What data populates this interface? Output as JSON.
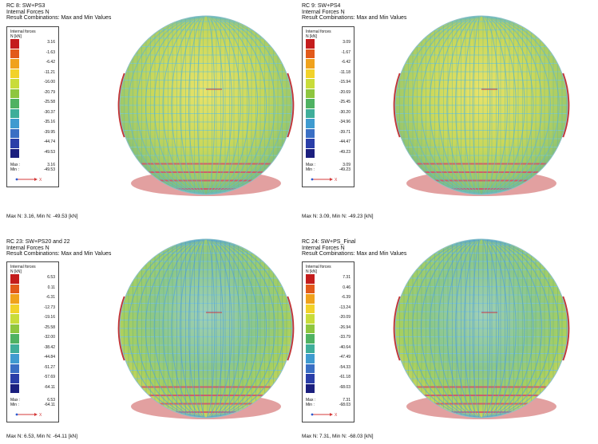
{
  "colors": {
    "scale": [
      "#c41c1c",
      "#e25a1a",
      "#f0a21c",
      "#f2d22a",
      "#c9dc3a",
      "#8ec63f",
      "#4fb262",
      "#3fae9a",
      "#3f9bd0",
      "#3a6fc4",
      "#2a3ea8",
      "#1b1f7e"
    ],
    "sphere_accent_red": "#c43636"
  },
  "panels": [
    {
      "title": "RC 8: SW+PS3",
      "subtitle": "Internal Forces N",
      "combo": "Result Combinations: Max and Min Values",
      "legend_title": "Internal forces",
      "legend_unit": "N [kN]",
      "ticks": [
        "3.16",
        "-1.63",
        "-6.42",
        "-11.21",
        "-16.00",
        "-20.79",
        "-25.58",
        "-30.37",
        "-35.16",
        "-39.95",
        "-44.74",
        "-49.53"
      ],
      "max_label": "Max :",
      "max_value": "3.16",
      "min_label": "Min :",
      "min_value": "-49.53",
      "footer": "Max N: 3.16, Min N: -49.53 [kN]",
      "tone": "yellow"
    },
    {
      "title": "RC 9: SW+PS4",
      "subtitle": "Internal Forces N",
      "combo": "Result Combinations: Max and Min Values",
      "legend_title": "Internal forces",
      "legend_unit": "N [kN]",
      "ticks": [
        "3.09",
        "-1.67",
        "-6.42",
        "-11.18",
        "-15.94",
        "-20.69",
        "-25.45",
        "-30.20",
        "-34.96",
        "-39.71",
        "-44.47",
        "-49.23"
      ],
      "max_label": "Max :",
      "max_value": "3.09",
      "min_label": "Min :",
      "min_value": "-49.23",
      "footer": "Max N: 3.09, Min N: -49.23 [kN]",
      "tone": "yellow"
    },
    {
      "title": "RC 23: SW+PS20 and 22",
      "subtitle": "Internal Forces N",
      "combo": "Result Combinations: Max and Min Values",
      "legend_title": "Internal forces",
      "legend_unit": "N [kN]",
      "ticks": [
        "6.53",
        "0.11",
        "-6.31",
        "-12.73",
        "-19.16",
        "-25.58",
        "-32.00",
        "-38.42",
        "-44.84",
        "-51.27",
        "-57.69",
        "-64.11"
      ],
      "max_label": "Max :",
      "max_value": "6.53",
      "min_label": "Min :",
      "min_value": "-64.11",
      "footer": "Max N: 6.53, Min N: -64.11 [kN]",
      "tone": "green"
    },
    {
      "title": "RC 24: SW+PS_Final",
      "subtitle": "Internal Forces N",
      "combo": "Result Combinations: Max and Min Values",
      "legend_title": "Internal forces",
      "legend_unit": "N [kN]",
      "ticks": [
        "7.31",
        "0.46",
        "-6.39",
        "-13.24",
        "-20.09",
        "-26.94",
        "-33.79",
        "-40.64",
        "-47.49",
        "-54.33",
        "-61.18",
        "-68.03"
      ],
      "max_label": "Max :",
      "max_value": "7.31",
      "min_label": "Min :",
      "min_value": "-68.03",
      "footer": "Max N: 7.31, Min N: -68.03 [kN]",
      "tone": "green"
    }
  ]
}
